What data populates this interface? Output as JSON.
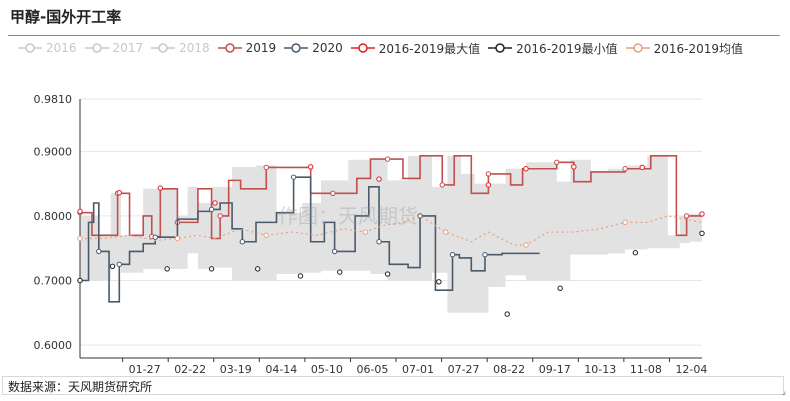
{
  "title": "甲醇-国外开工率",
  "source": "数据来源：天风期货研究所",
  "watermark": "作图：天风期货",
  "legend": [
    {
      "label": "2016",
      "color": "#c8c8c8",
      "off": true
    },
    {
      "label": "2017",
      "color": "#c8c8c8",
      "off": true
    },
    {
      "label": "2018",
      "color": "#c8c8c8",
      "off": true
    },
    {
      "label": "2019",
      "color": "#c0504d",
      "off": false
    },
    {
      "label": "2020",
      "color": "#4a5a6a",
      "off": false
    },
    {
      "label": "2016-2019最大值",
      "color": "#e02020",
      "off": false
    },
    {
      "label": "2016-2019最小值",
      "color": "#222222",
      "off": false
    },
    {
      "label": "2016-2019均值",
      "color": "#e8a080",
      "off": false
    }
  ],
  "chart_data": {
    "type": "line",
    "x_ticks": [
      "01-27",
      "02-22",
      "03-19",
      "04-14",
      "05-10",
      "06-05",
      "07-01",
      "07-27",
      "08-22",
      "09-17",
      "10-13",
      "11-08",
      "12-04"
    ],
    "y_ticks": [
      "0.6000",
      "0.7000",
      "0.8000",
      "0.9000",
      "0.9810"
    ],
    "ylim": [
      0.58,
      0.981
    ],
    "xlim": [
      1,
      365
    ],
    "grid": true,
    "range_band": {
      "name": "2016-2019最大值/最小值",
      "color": "#e2e2e2",
      "x": [
        1,
        12,
        19,
        25,
        38,
        45,
        58,
        64,
        70,
        78,
        90,
        104,
        116,
        131,
        142,
        158,
        171,
        181,
        193,
        207,
        216,
        224,
        232,
        240,
        250,
        262,
        280,
        288,
        300,
        310,
        320,
        333,
        345,
        352,
        358,
        365
      ],
      "max": [
        0.8,
        0.772,
        0.835,
        0.77,
        0.842,
        0.842,
        0.8,
        0.845,
        0.82,
        0.845,
        0.876,
        0.878,
        0.805,
        0.82,
        0.855,
        0.887,
        0.887,
        0.855,
        0.893,
        0.845,
        0.893,
        0.865,
        0.85,
        0.85,
        0.873,
        0.883,
        0.853,
        0.887,
        0.868,
        0.873,
        0.878,
        0.893,
        0.77,
        0.8,
        0.803,
        0.803
      ],
      "min": [
        0.7,
        0.7,
        0.722,
        0.712,
        0.718,
        0.718,
        0.718,
        0.742,
        0.718,
        0.72,
        0.7,
        0.7,
        0.71,
        0.712,
        0.715,
        0.715,
        0.71,
        0.7,
        0.7,
        0.712,
        0.65,
        0.65,
        0.65,
        0.69,
        0.708,
        0.7,
        0.7,
        0.74,
        0.74,
        0.742,
        0.748,
        0.75,
        0.75,
        0.758,
        0.76,
        0.77
      ]
    },
    "series": [
      {
        "name": "2019",
        "color": "#c0504d",
        "step": true,
        "x": [
          1,
          8,
          19,
          23,
          30,
          38,
          43,
          48,
          53,
          58,
          70,
          78,
          83,
          88,
          95,
          110,
          122,
          136,
          149,
          163,
          171,
          181,
          190,
          200,
          213,
          220,
          230,
          240,
          253,
          260,
          280,
          290,
          300,
          320,
          335,
          350,
          356,
          365
        ],
        "y": [
          0.805,
          0.77,
          0.77,
          0.835,
          0.77,
          0.8,
          0.768,
          0.842,
          0.842,
          0.79,
          0.842,
          0.765,
          0.8,
          0.855,
          0.842,
          0.875,
          0.875,
          0.835,
          0.835,
          0.858,
          0.888,
          0.888,
          0.858,
          0.893,
          0.848,
          0.893,
          0.835,
          0.865,
          0.848,
          0.873,
          0.883,
          0.853,
          0.868,
          0.873,
          0.893,
          0.77,
          0.8,
          0.803
        ]
      },
      {
        "name": "2020",
        "color": "#4a5a6a",
        "step": true,
        "x": [
          1,
          6,
          9,
          12,
          18,
          22,
          24,
          30,
          38,
          45,
          58,
          70,
          78,
          83,
          90,
          96,
          104,
          116,
          126,
          136,
          144,
          150,
          162,
          170,
          176,
          182,
          193,
          200,
          209,
          215,
          219,
          223,
          230,
          238,
          248,
          270
        ],
        "y": [
          0.7,
          0.79,
          0.82,
          0.745,
          0.667,
          0.667,
          0.725,
          0.745,
          0.757,
          0.767,
          0.795,
          0.807,
          0.81,
          0.82,
          0.78,
          0.76,
          0.79,
          0.805,
          0.86,
          0.76,
          0.79,
          0.745,
          0.8,
          0.845,
          0.76,
          0.725,
          0.72,
          0.8,
          0.685,
          0.685,
          0.74,
          0.735,
          0.715,
          0.74,
          0.742,
          0.742
        ]
      },
      {
        "name": "2016-2019均值",
        "color": "#e8a080",
        "dashed": true,
        "x": [
          1,
          15,
          30,
          45,
          58,
          70,
          80,
          95,
          110,
          125,
          140,
          155,
          168,
          178,
          190,
          200,
          215,
          230,
          240,
          255,
          262,
          275,
          290,
          305,
          320,
          333,
          345,
          365
        ],
        "y": [
          0.765,
          0.765,
          0.77,
          0.762,
          0.765,
          0.77,
          0.765,
          0.78,
          0.77,
          0.775,
          0.77,
          0.78,
          0.775,
          0.785,
          0.79,
          0.8,
          0.775,
          0.76,
          0.775,
          0.755,
          0.755,
          0.775,
          0.775,
          0.78,
          0.79,
          0.79,
          0.8,
          0.79
        ]
      }
    ],
    "extra_markers": {
      "max": {
        "color": "#e02020",
        "x": [
          1,
          24,
          48,
          80,
          136,
          176,
          240,
          262,
          290,
          330,
          365
        ],
        "y": [
          0.807,
          0.836,
          0.843,
          0.82,
          0.876,
          0.857,
          0.848,
          0.873,
          0.876,
          0.875,
          0.803
        ]
      },
      "min": {
        "color": "#222222",
        "x": [
          1,
          20,
          52,
          78,
          105,
          130,
          153,
          181,
          211,
          251,
          282,
          326,
          365
        ],
        "y": [
          0.7,
          0.722,
          0.718,
          0.718,
          0.718,
          0.707,
          0.713,
          0.71,
          0.698,
          0.648,
          0.688,
          0.743,
          0.773
        ]
      }
    }
  }
}
